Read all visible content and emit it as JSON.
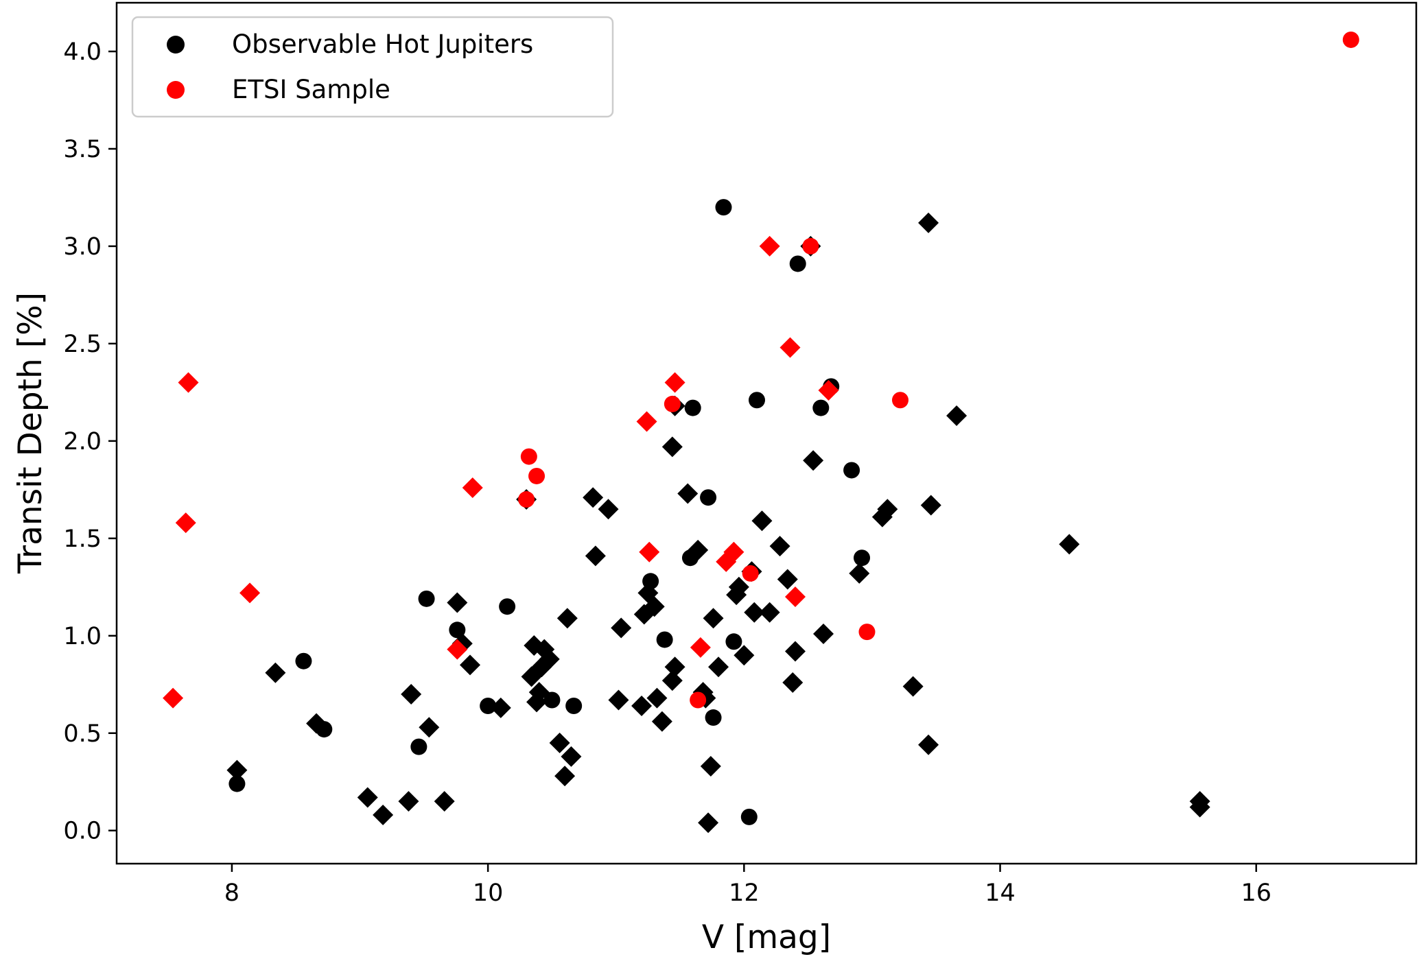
{
  "chart_data": {
    "type": "scatter",
    "xlabel": "V [mag]",
    "ylabel": "Transit Depth [%]",
    "xlim": [
      7.1,
      17.25
    ],
    "ylim": [
      -0.17,
      4.25
    ],
    "xticks": [
      8,
      10,
      12,
      14,
      16
    ],
    "yticks": [
      0.0,
      0.5,
      1.0,
      1.5,
      2.0,
      2.5,
      3.0,
      3.5,
      4.0
    ],
    "legend_position": "top-left",
    "legend": [
      {
        "label": "Observable Hot Jupiters",
        "color": "#000000",
        "marker": "circle"
      },
      {
        "label": "ETSI Sample",
        "color": "#ff0000",
        "marker": "circle"
      }
    ],
    "series": [
      {
        "name": "Observable Hot Jupiters",
        "color": "#000000",
        "points": [
          {
            "x": 8.04,
            "y": 0.24,
            "m": "circle"
          },
          {
            "x": 8.04,
            "y": 0.31,
            "m": "diamond"
          },
          {
            "x": 8.34,
            "y": 0.81,
            "m": "diamond"
          },
          {
            "x": 8.56,
            "y": 0.87,
            "m": "circle"
          },
          {
            "x": 8.66,
            "y": 0.55,
            "m": "diamond"
          },
          {
            "x": 8.72,
            "y": 0.52,
            "m": "circle"
          },
          {
            "x": 9.06,
            "y": 0.17,
            "m": "diamond"
          },
          {
            "x": 9.18,
            "y": 0.08,
            "m": "diamond"
          },
          {
            "x": 9.38,
            "y": 0.15,
            "m": "diamond"
          },
          {
            "x": 9.4,
            "y": 0.7,
            "m": "diamond"
          },
          {
            "x": 9.46,
            "y": 0.43,
            "m": "circle"
          },
          {
            "x": 9.52,
            "y": 1.19,
            "m": "circle"
          },
          {
            "x": 9.54,
            "y": 0.53,
            "m": "diamond"
          },
          {
            "x": 9.66,
            "y": 0.15,
            "m": "diamond"
          },
          {
            "x": 9.76,
            "y": 1.03,
            "m": "circle"
          },
          {
            "x": 9.76,
            "y": 1.17,
            "m": "diamond"
          },
          {
            "x": 9.8,
            "y": 0.96,
            "m": "diamond"
          },
          {
            "x": 9.86,
            "y": 0.85,
            "m": "diamond"
          },
          {
            "x": 10.0,
            "y": 0.64,
            "m": "circle"
          },
          {
            "x": 10.1,
            "y": 0.63,
            "m": "diamond"
          },
          {
            "x": 10.15,
            "y": 1.15,
            "m": "circle"
          },
          {
            "x": 10.3,
            "y": 1.7,
            "m": "diamond"
          },
          {
            "x": 10.34,
            "y": 0.79,
            "m": "diamond"
          },
          {
            "x": 10.36,
            "y": 0.95,
            "m": "diamond"
          },
          {
            "x": 10.38,
            "y": 0.66,
            "m": "diamond"
          },
          {
            "x": 10.4,
            "y": 0.71,
            "m": "diamond"
          },
          {
            "x": 10.42,
            "y": 0.84,
            "m": "diamond"
          },
          {
            "x": 10.44,
            "y": 0.93,
            "m": "diamond"
          },
          {
            "x": 10.48,
            "y": 0.88,
            "m": "diamond"
          },
          {
            "x": 10.5,
            "y": 0.67,
            "m": "circle"
          },
          {
            "x": 10.56,
            "y": 0.45,
            "m": "diamond"
          },
          {
            "x": 10.6,
            "y": 0.28,
            "m": "diamond"
          },
          {
            "x": 10.62,
            "y": 1.09,
            "m": "diamond"
          },
          {
            "x": 10.65,
            "y": 0.38,
            "m": "diamond"
          },
          {
            "x": 10.67,
            "y": 0.64,
            "m": "circle"
          },
          {
            "x": 10.82,
            "y": 1.71,
            "m": "diamond"
          },
          {
            "x": 10.84,
            "y": 1.41,
            "m": "diamond"
          },
          {
            "x": 10.94,
            "y": 1.65,
            "m": "diamond"
          },
          {
            "x": 11.02,
            "y": 0.67,
            "m": "diamond"
          },
          {
            "x": 11.04,
            "y": 1.04,
            "m": "diamond"
          },
          {
            "x": 11.2,
            "y": 0.64,
            "m": "diamond"
          },
          {
            "x": 11.22,
            "y": 1.11,
            "m": "diamond"
          },
          {
            "x": 11.25,
            "y": 1.22,
            "m": "diamond"
          },
          {
            "x": 11.27,
            "y": 1.28,
            "m": "circle"
          },
          {
            "x": 11.3,
            "y": 1.15,
            "m": "diamond"
          },
          {
            "x": 11.32,
            "y": 0.68,
            "m": "diamond"
          },
          {
            "x": 11.36,
            "y": 0.56,
            "m": "diamond"
          },
          {
            "x": 11.38,
            "y": 0.98,
            "m": "circle"
          },
          {
            "x": 11.44,
            "y": 0.77,
            "m": "diamond"
          },
          {
            "x": 11.44,
            "y": 1.97,
            "m": "diamond"
          },
          {
            "x": 11.46,
            "y": 0.84,
            "m": "diamond"
          },
          {
            "x": 11.46,
            "y": 2.18,
            "m": "diamond"
          },
          {
            "x": 11.56,
            "y": 1.73,
            "m": "diamond"
          },
          {
            "x": 11.58,
            "y": 1.4,
            "m": "circle"
          },
          {
            "x": 11.6,
            "y": 2.17,
            "m": "circle"
          },
          {
            "x": 11.64,
            "y": 1.44,
            "m": "diamond"
          },
          {
            "x": 11.68,
            "y": 0.71,
            "m": "diamond"
          },
          {
            "x": 11.7,
            "y": 0.68,
            "m": "diamond"
          },
          {
            "x": 11.72,
            "y": 0.04,
            "m": "diamond"
          },
          {
            "x": 11.72,
            "y": 1.71,
            "m": "circle"
          },
          {
            "x": 11.74,
            "y": 0.33,
            "m": "diamond"
          },
          {
            "x": 11.76,
            "y": 0.58,
            "m": "circle"
          },
          {
            "x": 11.76,
            "y": 1.09,
            "m": "diamond"
          },
          {
            "x": 11.8,
            "y": 0.84,
            "m": "diamond"
          },
          {
            "x": 11.84,
            "y": 3.2,
            "m": "circle"
          },
          {
            "x": 11.92,
            "y": 0.97,
            "m": "circle"
          },
          {
            "x": 11.94,
            "y": 1.21,
            "m": "diamond"
          },
          {
            "x": 11.96,
            "y": 1.25,
            "m": "diamond"
          },
          {
            "x": 12.0,
            "y": 0.9,
            "m": "diamond"
          },
          {
            "x": 12.04,
            "y": 0.07,
            "m": "circle"
          },
          {
            "x": 12.06,
            "y": 1.33,
            "m": "diamond"
          },
          {
            "x": 12.08,
            "y": 1.12,
            "m": "diamond"
          },
          {
            "x": 12.1,
            "y": 2.21,
            "m": "circle"
          },
          {
            "x": 12.14,
            "y": 1.59,
            "m": "diamond"
          },
          {
            "x": 12.2,
            "y": 1.12,
            "m": "diamond"
          },
          {
            "x": 12.28,
            "y": 1.46,
            "m": "diamond"
          },
          {
            "x": 12.34,
            "y": 1.29,
            "m": "diamond"
          },
          {
            "x": 12.38,
            "y": 0.76,
            "m": "diamond"
          },
          {
            "x": 12.4,
            "y": 0.92,
            "m": "diamond"
          },
          {
            "x": 12.42,
            "y": 2.91,
            "m": "circle"
          },
          {
            "x": 12.52,
            "y": 3.0,
            "m": "diamond"
          },
          {
            "x": 12.54,
            "y": 1.9,
            "m": "diamond"
          },
          {
            "x": 12.6,
            "y": 2.17,
            "m": "circle"
          },
          {
            "x": 12.62,
            "y": 1.01,
            "m": "diamond"
          },
          {
            "x": 12.68,
            "y": 2.28,
            "m": "circle"
          },
          {
            "x": 12.84,
            "y": 1.85,
            "m": "circle"
          },
          {
            "x": 12.9,
            "y": 1.32,
            "m": "diamond"
          },
          {
            "x": 12.92,
            "y": 1.4,
            "m": "circle"
          },
          {
            "x": 13.08,
            "y": 1.61,
            "m": "diamond"
          },
          {
            "x": 13.12,
            "y": 1.65,
            "m": "diamond"
          },
          {
            "x": 13.32,
            "y": 0.74,
            "m": "diamond"
          },
          {
            "x": 13.44,
            "y": 3.12,
            "m": "diamond"
          },
          {
            "x": 13.44,
            "y": 0.44,
            "m": "diamond"
          },
          {
            "x": 13.46,
            "y": 1.67,
            "m": "diamond"
          },
          {
            "x": 13.66,
            "y": 2.13,
            "m": "diamond"
          },
          {
            "x": 14.54,
            "y": 1.47,
            "m": "diamond"
          },
          {
            "x": 15.56,
            "y": 0.15,
            "m": "diamond"
          },
          {
            "x": 15.56,
            "y": 0.12,
            "m": "diamond"
          }
        ]
      },
      {
        "name": "ETSI Sample",
        "color": "#ff0000",
        "points": [
          {
            "x": 7.54,
            "y": 0.68,
            "m": "diamond"
          },
          {
            "x": 7.64,
            "y": 1.58,
            "m": "diamond"
          },
          {
            "x": 7.66,
            "y": 2.3,
            "m": "diamond"
          },
          {
            "x": 8.14,
            "y": 1.22,
            "m": "diamond"
          },
          {
            "x": 9.76,
            "y": 0.93,
            "m": "diamond"
          },
          {
            "x": 9.88,
            "y": 1.76,
            "m": "diamond"
          },
          {
            "x": 10.3,
            "y": 1.7,
            "m": "circle"
          },
          {
            "x": 10.32,
            "y": 1.92,
            "m": "circle"
          },
          {
            "x": 10.38,
            "y": 1.82,
            "m": "circle"
          },
          {
            "x": 11.24,
            "y": 2.1,
            "m": "diamond"
          },
          {
            "x": 11.26,
            "y": 1.43,
            "m": "diamond"
          },
          {
            "x": 11.44,
            "y": 2.19,
            "m": "circle"
          },
          {
            "x": 11.46,
            "y": 2.3,
            "m": "diamond"
          },
          {
            "x": 11.64,
            "y": 0.67,
            "m": "circle"
          },
          {
            "x": 11.66,
            "y": 0.94,
            "m": "diamond"
          },
          {
            "x": 11.86,
            "y": 1.38,
            "m": "diamond"
          },
          {
            "x": 11.92,
            "y": 1.43,
            "m": "diamond"
          },
          {
            "x": 12.05,
            "y": 1.32,
            "m": "circle"
          },
          {
            "x": 12.2,
            "y": 3.0,
            "m": "diamond"
          },
          {
            "x": 12.36,
            "y": 2.48,
            "m": "diamond"
          },
          {
            "x": 12.4,
            "y": 1.2,
            "m": "diamond"
          },
          {
            "x": 12.52,
            "y": 3.0,
            "m": "circle"
          },
          {
            "x": 12.66,
            "y": 2.26,
            "m": "diamond"
          },
          {
            "x": 12.96,
            "y": 1.02,
            "m": "circle"
          },
          {
            "x": 13.22,
            "y": 2.21,
            "m": "circle"
          },
          {
            "x": 16.74,
            "y": 4.06,
            "m": "circle"
          }
        ]
      }
    ]
  }
}
